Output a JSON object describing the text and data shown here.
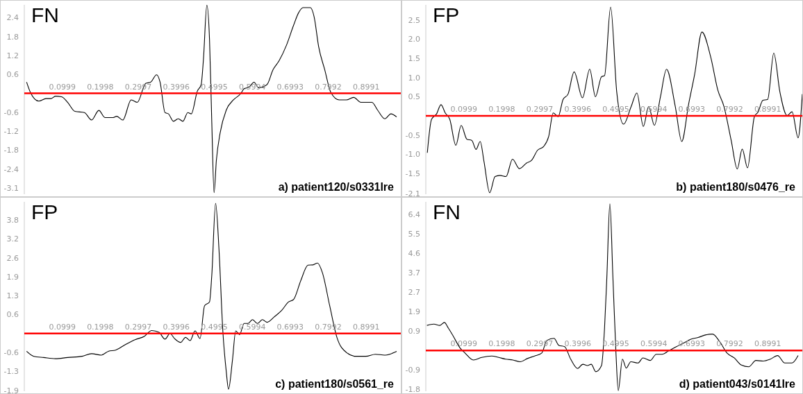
{
  "chart_data": [
    {
      "type": "line",
      "title": "FN",
      "annotations": [
        "a) patient120/s0331lre"
      ],
      "color": "#000000",
      "x": [
        0.006,
        0.016,
        0.038,
        0.057,
        0.07,
        0.082,
        0.098,
        0.114,
        0.133,
        0.158,
        0.177,
        0.196,
        0.212,
        0.234,
        0.243,
        0.259,
        0.281,
        0.297,
        0.319,
        0.332,
        0.348,
        0.357,
        0.37,
        0.379,
        0.392,
        0.405,
        0.417,
        0.43,
        0.439,
        0.455,
        0.465,
        0.471,
        0.48,
        0.487,
        0.493,
        0.499,
        0.505,
        0.515,
        0.531,
        0.55,
        0.569,
        0.578,
        0.591,
        0.604,
        0.616,
        0.638,
        0.654,
        0.67,
        0.689,
        0.708,
        0.721,
        0.733,
        0.752,
        0.762,
        0.774,
        0.79,
        0.806,
        0.828,
        0.847,
        0.866,
        0.885,
        0.914,
        0.929,
        0.948,
        0.964,
        0.979
      ],
      "values": [
        0.36,
        0.03,
        -0.25,
        -0.17,
        -0.17,
        -0.09,
        -0.11,
        -0.29,
        -0.58,
        -0.62,
        -0.86,
        -0.55,
        -0.78,
        -0.78,
        -0.74,
        -0.86,
        -0.21,
        -0.29,
        0.32,
        0.36,
        0.6,
        0.36,
        -0.62,
        -0.66,
        -0.9,
        -0.82,
        -0.9,
        -0.62,
        -0.66,
        0.07,
        0.28,
        1.09,
        2.84,
        1.74,
        -0.94,
        -3.2,
        -2.16,
        -1.27,
        -0.54,
        -0.21,
        -0.01,
        0.15,
        0.2,
        0.36,
        0.18,
        0.28,
        0.76,
        1.05,
        1.54,
        2.19,
        2.59,
        2.76,
        2.76,
        2.47,
        1.5,
        0.76,
        0.03,
        -0.21,
        -0.21,
        -0.13,
        -0.29,
        -0.29,
        -0.54,
        -0.82,
        -0.66,
        -0.76
      ],
      "xlim": [
        0,
        0.99
      ],
      "xticks": [
        0.0999,
        0.1998,
        0.2997,
        0.3996,
        0.4995,
        0.5994,
        0.6993,
        0.7992,
        0.8991
      ],
      "ylim": [
        -3.25,
        2.85
      ],
      "yticks": [
        {
          "value": -3.05,
          "label": "-3.1"
        },
        {
          "value": -2.44,
          "label": "-2.4"
        },
        {
          "value": -1.83,
          "label": "-1.8"
        },
        {
          "value": -1.22,
          "label": "-1.2"
        },
        {
          "value": -0.61,
          "label": "-0.6"
        },
        {
          "value": 0.61,
          "label": "0.6"
        },
        {
          "value": 1.22,
          "label": "1.2"
        },
        {
          "value": 1.83,
          "label": "1.8"
        },
        {
          "value": 2.44,
          "label": "2.4"
        }
      ]
    },
    {
      "type": "line",
      "title": "FP",
      "annotations": [
        "b) patient180/s0476_re"
      ],
      "color": "#000000",
      "x": [
        0.004,
        0.015,
        0.028,
        0.04,
        0.051,
        0.063,
        0.079,
        0.093,
        0.108,
        0.121,
        0.132,
        0.143,
        0.153,
        0.168,
        0.182,
        0.195,
        0.211,
        0.228,
        0.246,
        0.265,
        0.278,
        0.294,
        0.31,
        0.323,
        0.335,
        0.348,
        0.361,
        0.374,
        0.39,
        0.412,
        0.431,
        0.446,
        0.462,
        0.47,
        0.486,
        0.502,
        0.52,
        0.54,
        0.555,
        0.572,
        0.586,
        0.601,
        0.617,
        0.633,
        0.656,
        0.673,
        0.691,
        0.707,
        0.726,
        0.749,
        0.768,
        0.784,
        0.803,
        0.819,
        0.832,
        0.846,
        0.864,
        0.874,
        0.886,
        0.899,
        0.915,
        0.931,
        0.95,
        0.963,
        0.979,
        0.99
      ],
      "values": [
        -0.98,
        -0.09,
        0.05,
        0.3,
        0.08,
        -0.09,
        -0.78,
        -0.25,
        -0.62,
        -0.65,
        -0.89,
        -0.68,
        -1.21,
        -2.04,
        -1.61,
        -1.58,
        -1.61,
        -1.15,
        -1.4,
        -1.25,
        -1.18,
        -0.91,
        -0.81,
        -0.55,
        0.08,
        -0.02,
        0.44,
        0.58,
        1.17,
        0.48,
        1.24,
        0.51,
        1.04,
        1.07,
        2.89,
        0.64,
        -0.22,
        0.25,
        0.61,
        -0.28,
        0.25,
        -0.25,
        0.51,
        1.24,
        0.25,
        -0.68,
        0.31,
        1.11,
        2.23,
        1.57,
        0.68,
        0.25,
        -0.65,
        -1.41,
        -0.88,
        -1.38,
        -0.02,
        0.11,
        0.41,
        0.44,
        1.67,
        0.64,
        0.01,
        0.11,
        -0.58,
        0.58
      ],
      "xlim": [
        0,
        0.99
      ],
      "xticks": [
        0.0999,
        0.1998,
        0.2997,
        0.3996,
        0.4995,
        0.5994,
        0.6993,
        0.7992,
        0.8991
      ],
      "ylim": [
        -2.08,
        2.95
      ],
      "yticks": [
        {
          "value": -2.06,
          "label": "-2.1"
        },
        {
          "value": -1.53,
          "label": "-1.5"
        },
        {
          "value": -1.02,
          "label": "-1.0"
        },
        {
          "value": -0.51,
          "label": "-0.5"
        },
        {
          "value": 0.51,
          "label": "0.5"
        },
        {
          "value": 1.02,
          "label": "1.0"
        },
        {
          "value": 1.53,
          "label": "1.5"
        },
        {
          "value": 2.04,
          "label": "2.0"
        },
        {
          "value": 2.55,
          "label": "2.5"
        }
      ]
    },
    {
      "type": "line",
      "title": "FP",
      "annotations": [
        "c) patient180/s0561_re"
      ],
      "color": "#000000",
      "x": [
        0.006,
        0.025,
        0.051,
        0.082,
        0.114,
        0.152,
        0.177,
        0.202,
        0.221,
        0.24,
        0.265,
        0.291,
        0.316,
        0.335,
        0.354,
        0.37,
        0.383,
        0.395,
        0.411,
        0.424,
        0.436,
        0.449,
        0.462,
        0.474,
        0.487,
        0.493,
        0.503,
        0.512,
        0.522,
        0.531,
        0.537,
        0.547,
        0.556,
        0.566,
        0.578,
        0.588,
        0.6,
        0.613,
        0.626,
        0.638,
        0.657,
        0.676,
        0.695,
        0.708,
        0.727,
        0.746,
        0.759,
        0.771,
        0.784,
        0.803,
        0.822,
        0.847,
        0.872,
        0.898,
        0.923,
        0.948,
        0.973,
        0.979
      ],
      "values": [
        -0.6,
        -0.77,
        -0.81,
        -0.85,
        -0.81,
        -0.77,
        -0.68,
        -0.73,
        -0.6,
        -0.56,
        -0.38,
        -0.21,
        -0.09,
        0.1,
        0.04,
        -0.19,
        0,
        -0.17,
        -0.3,
        -0.13,
        -0.24,
        0.09,
        -0.17,
        0.94,
        1.07,
        1.97,
        4.4,
        2.82,
        0.09,
        -1.28,
        -1.88,
        -0.94,
        0.09,
        -0.04,
        0.34,
        0.34,
        0.47,
        0.34,
        0.47,
        0.38,
        0.56,
        0.77,
        1.07,
        1.15,
        1.79,
        2.31,
        2.32,
        2.38,
        2.05,
        0.94,
        -0.13,
        -0.64,
        -0.77,
        -0.77,
        -0.7,
        -0.73,
        -0.64,
        -0.6
      ],
      "xlim": [
        0,
        0.99
      ],
      "xticks": [
        0.0999,
        0.1998,
        0.2997,
        0.3996,
        0.4995,
        0.5994,
        0.6993,
        0.7992,
        0.8991
      ],
      "ylim": [
        -1.95,
        4.45
      ],
      "yticks": [
        {
          "value": -1.92,
          "label": "-1.9"
        },
        {
          "value": -1.28,
          "label": "-1.3"
        },
        {
          "value": -0.64,
          "label": "-0.6"
        },
        {
          "value": 0.64,
          "label": "0.6"
        },
        {
          "value": 1.28,
          "label": "1.3"
        },
        {
          "value": 1.92,
          "label": "1.9"
        },
        {
          "value": 2.56,
          "label": "2.6"
        },
        {
          "value": 3.2,
          "label": "3.2"
        },
        {
          "value": 3.84,
          "label": "3.8"
        }
      ]
    },
    {
      "type": "line",
      "title": "FN",
      "annotations": [
        "d) patient043/s0141lre"
      ],
      "color": "#000000",
      "x": [
        0.003,
        0.021,
        0.037,
        0.049,
        0.059,
        0.071,
        0.09,
        0.103,
        0.125,
        0.147,
        0.173,
        0.192,
        0.21,
        0.229,
        0.248,
        0.267,
        0.286,
        0.305,
        0.318,
        0.337,
        0.35,
        0.365,
        0.381,
        0.399,
        0.413,
        0.425,
        0.435,
        0.447,
        0.462,
        0.47,
        0.476,
        0.484,
        0.492,
        0.5,
        0.506,
        0.517,
        0.527,
        0.539,
        0.558,
        0.571,
        0.59,
        0.606,
        0.621,
        0.64,
        0.659,
        0.678,
        0.697,
        0.716,
        0.735,
        0.754,
        0.773,
        0.792,
        0.811,
        0.83,
        0.849,
        0.868,
        0.887,
        0.906,
        0.925,
        0.944,
        0.963,
        0.979
      ],
      "values": [
        1.18,
        1.24,
        1.18,
        1.32,
        1.06,
        0.71,
        0.12,
        -0.12,
        -0.45,
        -0.33,
        -0.26,
        -0.33,
        -0.41,
        -0.45,
        -0.53,
        -0.38,
        -0.26,
        -0.12,
        0.47,
        0.57,
        0.24,
        0.18,
        -0.41,
        -0.85,
        -0.65,
        -0.71,
        -0.65,
        -1.0,
        -0.71,
        1.06,
        3.43,
        6.91,
        3.43,
        -0.12,
        -1.89,
        -0.41,
        -0.83,
        -0.53,
        -0.59,
        -0.35,
        -0.47,
        -0.18,
        -0.18,
        0,
        0.18,
        0.35,
        0.53,
        0.61,
        0.73,
        0.77,
        0.41,
        -0.12,
        -0.35,
        -0.69,
        -0.77,
        -0.47,
        -0.5,
        -0.41,
        -0.24,
        -0.59,
        -0.59,
        -0.24
      ],
      "xlim": [
        0,
        0.99
      ],
      "xticks": [
        0.0999,
        0.1998,
        0.2997,
        0.3996,
        0.4995,
        0.5994,
        0.6993,
        0.7992,
        0.8991
      ],
      "ylim": [
        -1.92,
        7.0
      ],
      "yticks": [
        {
          "value": -1.83,
          "label": "-1.8"
        },
        {
          "value": -0.915,
          "label": "-0.9"
        },
        {
          "value": 0.915,
          "label": "0.9"
        },
        {
          "value": 1.85,
          "label": "1.9"
        },
        {
          "value": 2.745,
          "label": "2.7"
        },
        {
          "value": 3.66,
          "label": "3.7"
        },
        {
          "value": 4.575,
          "label": "4.6"
        },
        {
          "value": 5.49,
          "label": "5.5"
        },
        {
          "value": 6.405,
          "label": "6.4"
        }
      ]
    }
  ]
}
